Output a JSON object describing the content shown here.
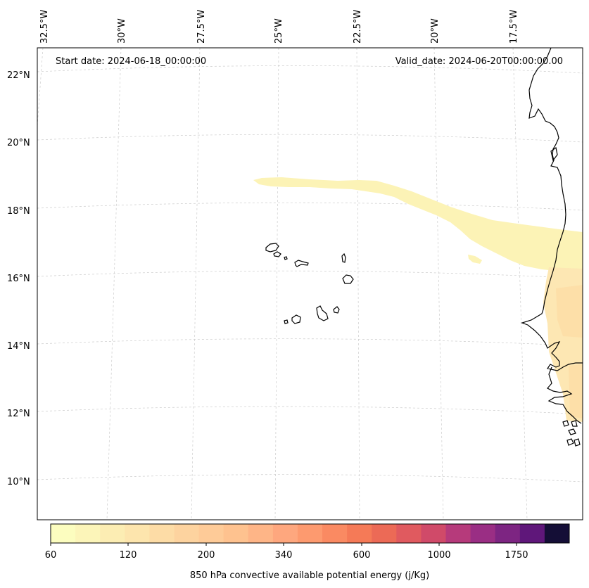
{
  "header": {
    "start_date": "Start date: 2024-06-18_00:00:00",
    "valid_date": "Valid_date: 2024-06-20T00:00:00.00"
  },
  "axes": {
    "longitude_labels": [
      "32.5°W",
      "30°W",
      "27.5°W",
      "25°W",
      "22.5°W",
      "20°W",
      "17.5°W"
    ],
    "latitude_labels": [
      "22°N",
      "20°N",
      "18°N",
      "16°N",
      "14°N",
      "12°N",
      "10°N"
    ]
  },
  "colorbar": {
    "title": "850 hPa convective available potential energy (j/Kg)",
    "tick_labels": [
      "60",
      "120",
      "200",
      "340",
      "600",
      "1000",
      "1750"
    ],
    "colors": [
      "#fcfdbf",
      "#fcf5b9",
      "#fcedb3",
      "#fde5ad",
      "#fddca6",
      "#fdd39f",
      "#fecb98",
      "#fec28f",
      "#feb587",
      "#fea77e",
      "#fd9a6f",
      "#fa8a62",
      "#f57a57",
      "#ec6a56",
      "#e05a5f",
      "#d04a69",
      "#b63a7b",
      "#9a2e84",
      "#7d2582",
      "#5f177a",
      "#140e36"
    ]
  },
  "map": {
    "field_colors": [
      "#fcf3b6",
      "#fde7b3",
      "#fddfa8"
    ]
  }
}
